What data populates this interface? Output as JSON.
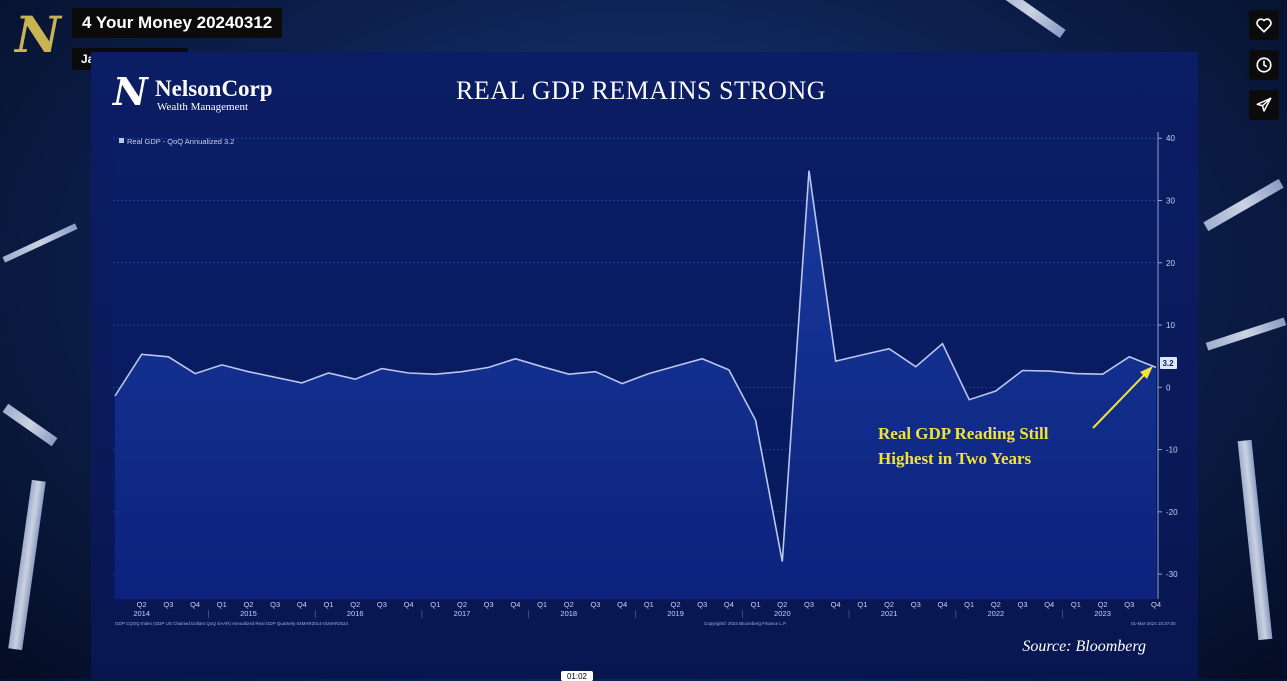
{
  "video": {
    "title": "4 Your Money 20240312",
    "author": "Jacob Woodcock",
    "timecode": "01:02"
  },
  "actions": [
    {
      "name": "like-button",
      "icon": "heart-icon"
    },
    {
      "name": "watch-later-button",
      "icon": "clock-icon"
    },
    {
      "name": "share-button",
      "icon": "send-icon"
    }
  ],
  "slide": {
    "brand": {
      "name": "NelsonCorp",
      "tagline": "Wealth Management"
    },
    "title": "REAL GDP REMAINS STRONG",
    "source": "Source: Bloomberg",
    "annotation": [
      "Real GDP Reading Still",
      "Highest in Two Years"
    ]
  },
  "chart_data": {
    "type": "area",
    "legend": "Real GDP - QoQ Annualized 3.2",
    "footnote_left": "GDP CQOQ Index (GDP US Chained Dollars QoQ SAAR) Annualized Real GDP  Quarterly 04MAR2014-01MAR2024",
    "footnote_mid": "Copyright© 2024 Bloomberg Finance L.P.",
    "footnote_right": "01-Mar-2024 15:37:00",
    "last_value_label": "3.2",
    "ylim": [
      -34,
      41
    ],
    "yticks": [
      40,
      30,
      20,
      10,
      0,
      -10,
      -20,
      -30
    ],
    "quarter_labels": [
      "",
      "Q2",
      "Q3",
      "Q4",
      "Q1",
      "Q2",
      "Q3",
      "Q4",
      "Q1",
      "Q2",
      "Q3",
      "Q4",
      "Q1",
      "Q2",
      "Q3",
      "Q4",
      "Q1",
      "Q2",
      "Q3",
      "Q4",
      "Q1",
      "Q2",
      "Q3",
      "Q4",
      "Q1",
      "Q2",
      "Q3",
      "Q4",
      "Q1",
      "Q2",
      "Q3",
      "Q4",
      "Q1",
      "Q2",
      "Q3",
      "Q4",
      "Q1",
      "Q2",
      "Q3",
      "Q4"
    ],
    "years": [
      {
        "label": "2014",
        "index": 1
      },
      {
        "label": "2015",
        "index": 5
      },
      {
        "label": "2016",
        "index": 9
      },
      {
        "label": "2017",
        "index": 13
      },
      {
        "label": "2018",
        "index": 17
      },
      {
        "label": "2019",
        "index": 21
      },
      {
        "label": "2020",
        "index": 25
      },
      {
        "label": "2021",
        "index": 29
      },
      {
        "label": "2022",
        "index": 33
      },
      {
        "label": "2023",
        "index": 37
      }
    ],
    "series": [
      {
        "values": [
          -1.4,
          5.3,
          4.9,
          2.2,
          3.6,
          2.5,
          1.6,
          0.7,
          2.3,
          1.3,
          3.0,
          2.3,
          2.1,
          2.5,
          3.2,
          4.6,
          3.3,
          2.1,
          2.5,
          0.6,
          2.2,
          3.4,
          4.6,
          2.8,
          -5.3,
          -28.0,
          34.8,
          4.2,
          5.2,
          6.2,
          3.3,
          7.0,
          -2.0,
          -0.6,
          2.7,
          2.6,
          2.2,
          2.1,
          4.9,
          3.2
        ]
      }
    ]
  }
}
